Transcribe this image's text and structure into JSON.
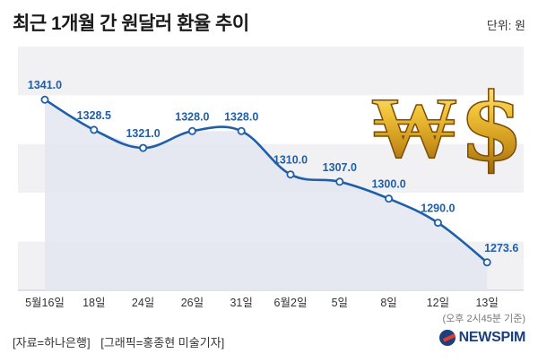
{
  "header": {
    "title": "최근 1개월 간 원달러 환율 추이",
    "unit": "단위: 원"
  },
  "footer": {
    "source": "[자료=하나은행]",
    "credit": "[그래픽=홍종현 미술기자]",
    "asof": "(오후 2시45분 기준)",
    "logo": "NEWSPIM"
  },
  "colors": {
    "line": "#1f5fa8",
    "area": "#e3e6f0",
    "band": "#f1f1f3",
    "label": "#1f5fa8",
    "coin": "#d9a521"
  },
  "decoration": {
    "won_symbol": "₩",
    "dollar_symbol": "$"
  },
  "chart_data": {
    "type": "area",
    "title": "최근 1개월 간 원달러 환율 추이",
    "ylabel": "",
    "xlabel": "",
    "categories": [
      "5월16일",
      "18일",
      "24일",
      "26일",
      "31일",
      "6월2일",
      "5일",
      "8일",
      "12일",
      "13일"
    ],
    "values": [
      1341.0,
      1328.5,
      1321.0,
      1328.0,
      1328.0,
      1310.0,
      1307.0,
      1300.0,
      1290.0,
      1273.6
    ],
    "data_labels": [
      "1341.0",
      "1328.5",
      "1321.0",
      "1328.0",
      "1328.0",
      "1310.0",
      "1307.0",
      "1300.0",
      "1290.0",
      "1273.6"
    ],
    "ylim": [
      1262,
      1363
    ],
    "grid": false,
    "legend": "none"
  }
}
